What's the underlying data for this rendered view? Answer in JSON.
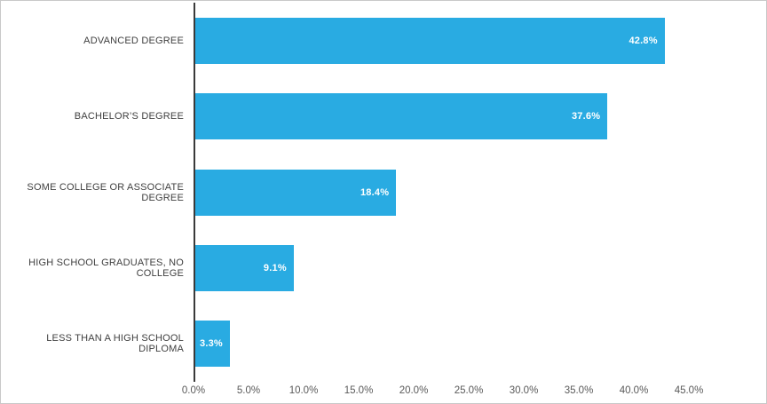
{
  "chart_data": {
    "type": "bar",
    "orientation": "horizontal",
    "title": "",
    "xlabel": "",
    "ylabel": "",
    "categories": [
      "ADVANCED DEGREE",
      "BACHELOR’S DEGREE",
      "SOME COLLEGE OR ASSOCIATE DEGREE",
      "HIGH SCHOOL GRADUATES, NO COLLEGE",
      "LESS THAN A HIGH SCHOOL DIPLOMA"
    ],
    "values": [
      42.8,
      37.6,
      18.4,
      9.1,
      3.3
    ],
    "data_labels": [
      "42.8%",
      "37.6%",
      "18.4%",
      "9.1%",
      "3.3%"
    ],
    "x_ticks": [
      "0.0%",
      "5.0%",
      "10.0%",
      "15.0%",
      "20.0%",
      "25.0%",
      "30.0%",
      "35.0%",
      "40.0%",
      "45.0%"
    ],
    "x_tick_values": [
      0,
      5,
      10,
      15,
      20,
      25,
      30,
      35,
      40,
      45
    ],
    "xlim": [
      0,
      45
    ],
    "grid": false,
    "legend": false,
    "colors": {
      "bar": "#29abe2",
      "bar_value_label": "#ffffff",
      "category_label": "#404040",
      "tick_label": "#595959",
      "axis_line": "#3a3a3a",
      "figure_border": "#c9c9c9",
      "background": "#ffffff"
    }
  }
}
